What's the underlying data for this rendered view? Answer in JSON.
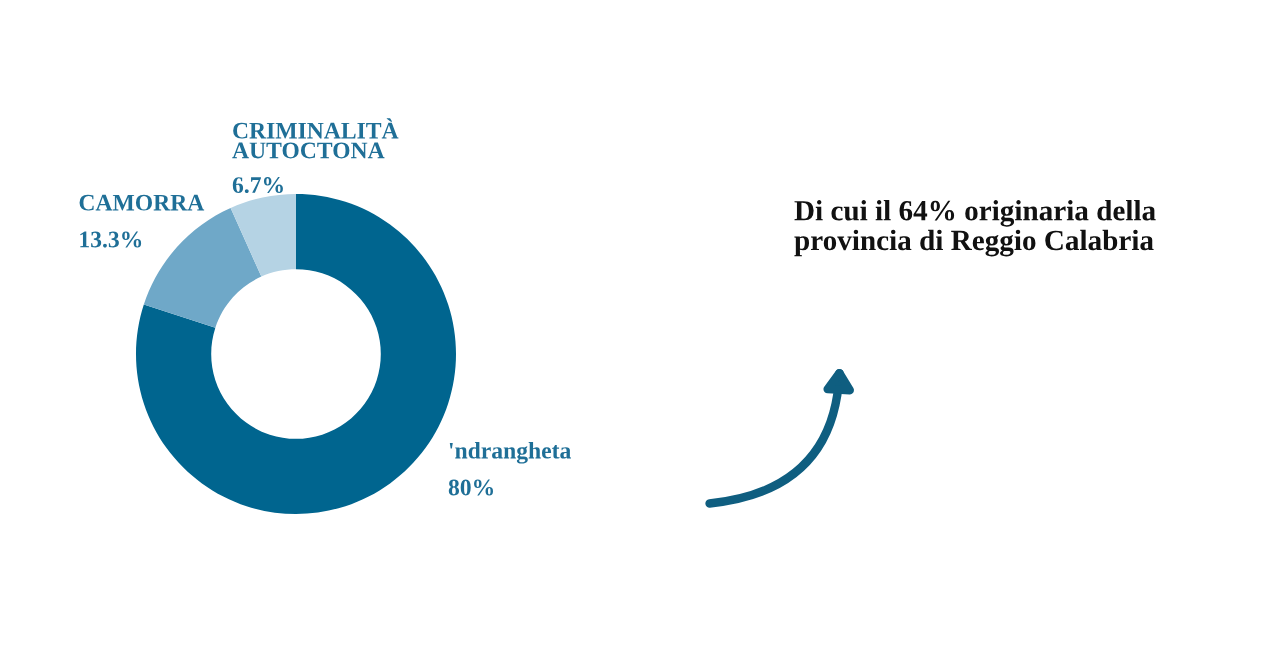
{
  "chart_data": {
    "type": "donut",
    "categories": [
      "'ndrangheta",
      "CAMORRA",
      "CRIMINALITÀ\nAUTOCTONA"
    ],
    "values": [
      80,
      13.3,
      6.7
    ],
    "colors": [
      "#00658f",
      "#6fa8c8",
      "#b5d3e4"
    ],
    "value_labels": [
      "80%",
      "13.3%",
      "6.7%"
    ],
    "annotations": [
      "Di cui il 64% originaria della\nprovincia di Reggio Calabria"
    ],
    "legend": false
  }
}
